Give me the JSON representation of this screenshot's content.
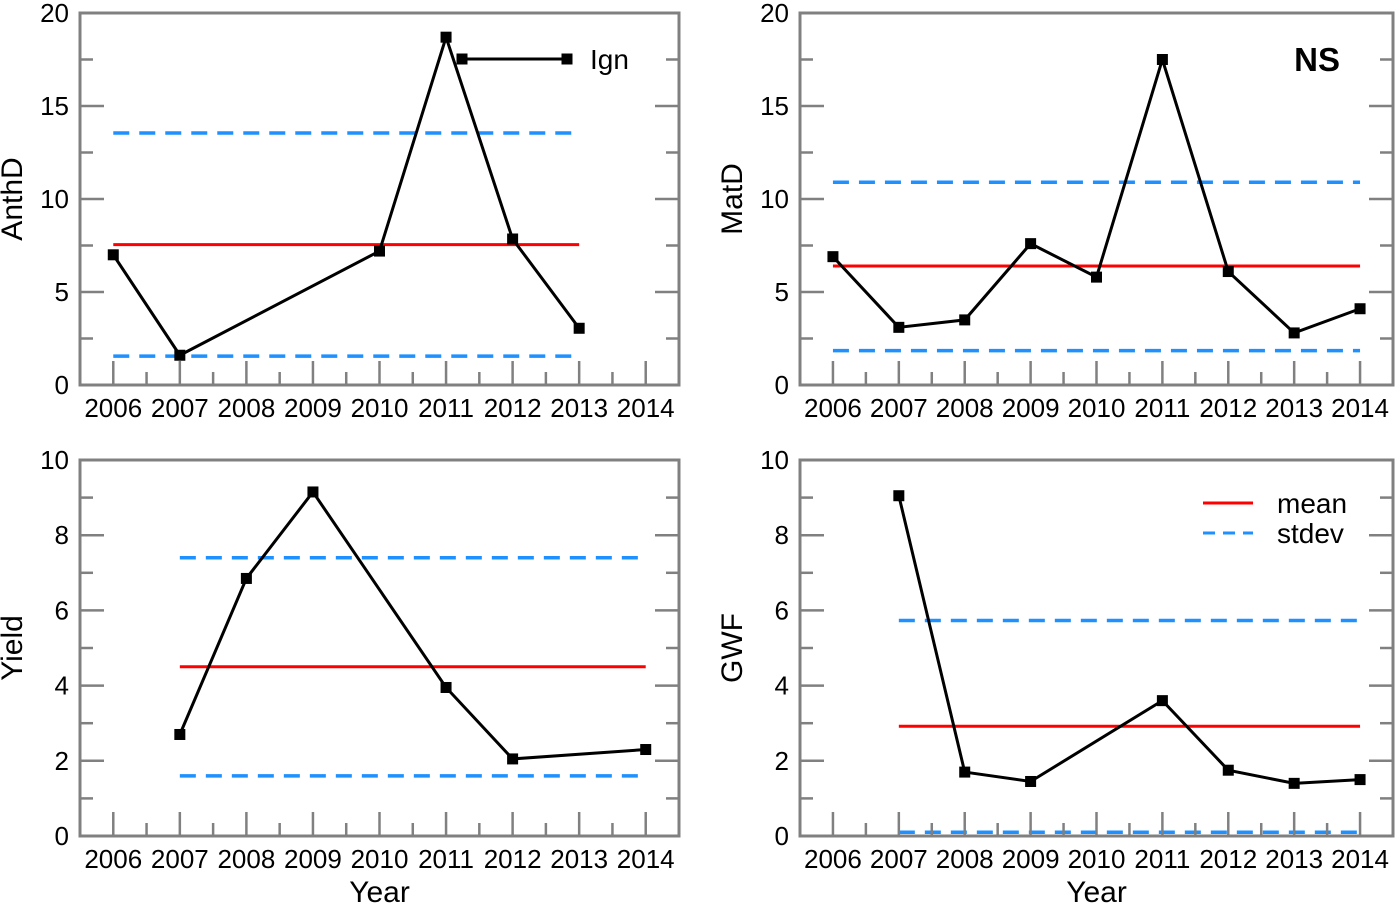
{
  "colors": {
    "background": "#ffffff",
    "series": "#000000",
    "mean": "#ff0000",
    "stdev": "#1e90ff",
    "frame": "#808080",
    "tick": "#808080",
    "text": "#000000",
    "annotation": "#878787"
  },
  "chart_data": [
    {
      "id": "anthd",
      "type": "line",
      "ylabel": "AnthD",
      "xlabel": "",
      "xlim": [
        2005.5,
        2014.5
      ],
      "ylim": [
        0,
        20
      ],
      "xticks": [
        2006,
        2007,
        2008,
        2009,
        2010,
        2011,
        2012,
        2013,
        2014
      ],
      "yticks": [
        0,
        5,
        10,
        15,
        20
      ],
      "yminor_step": 2.5,
      "grid": false,
      "series": [
        {
          "name": "Ign",
          "marker": "square",
          "x": [
            2006,
            2007,
            2010,
            2011,
            2012,
            2013
          ],
          "y": [
            7.0,
            1.6,
            7.2,
            18.7,
            7.85,
            3.05
          ]
        }
      ],
      "mean_line": {
        "value": 7.55,
        "label": "mean"
      },
      "stdev_band": {
        "low": 1.55,
        "high": 13.55,
        "label": "stdev"
      },
      "legend": {
        "show": true,
        "position": "top-right",
        "items": [
          {
            "label": "Ign",
            "sample": "series"
          }
        ]
      },
      "annotation": null
    },
    {
      "id": "matd",
      "type": "line",
      "ylabel": "MatD",
      "xlabel": "",
      "xlim": [
        2005.5,
        2014.5
      ],
      "ylim": [
        0,
        20
      ],
      "xticks": [
        2006,
        2007,
        2008,
        2009,
        2010,
        2011,
        2012,
        2013,
        2014
      ],
      "yticks": [
        0,
        5,
        10,
        15,
        20
      ],
      "yminor_step": 2.5,
      "grid": false,
      "series": [
        {
          "name": "Ign",
          "marker": "square",
          "x": [
            2006,
            2007,
            2008,
            2009,
            2010,
            2011,
            2012,
            2013,
            2014
          ],
          "y": [
            6.9,
            3.1,
            3.5,
            7.6,
            5.8,
            17.5,
            6.1,
            2.8,
            4.1
          ]
        }
      ],
      "mean_line": {
        "value": 6.4,
        "label": "mean"
      },
      "stdev_band": {
        "low": 1.85,
        "high": 10.9,
        "label": "stdev"
      },
      "legend": {
        "show": false,
        "items": []
      },
      "annotation": "NS"
    },
    {
      "id": "yield",
      "type": "line",
      "ylabel": "Yield",
      "xlabel": "Year",
      "xlim": [
        2005.5,
        2014.5
      ],
      "ylim": [
        0,
        10
      ],
      "xticks": [
        2006,
        2007,
        2008,
        2009,
        2010,
        2011,
        2012,
        2013,
        2014
      ],
      "yticks": [
        0,
        2,
        4,
        6,
        8,
        10
      ],
      "yminor_step": 1,
      "grid": false,
      "series": [
        {
          "name": "Ign",
          "marker": "square",
          "x": [
            2007,
            2008,
            2009,
            2011,
            2012,
            2014
          ],
          "y": [
            2.7,
            6.85,
            9.15,
            3.95,
            2.05,
            2.3
          ]
        }
      ],
      "mean_line": {
        "value": 4.5,
        "label": "mean"
      },
      "stdev_band": {
        "low": 1.6,
        "high": 7.4,
        "label": "stdev"
      },
      "legend": {
        "show": false,
        "items": []
      },
      "annotation": null
    },
    {
      "id": "gwf",
      "type": "line",
      "ylabel": "GWF",
      "xlabel": "Year",
      "xlim": [
        2005.5,
        2014.5
      ],
      "ylim": [
        0,
        10
      ],
      "xticks": [
        2006,
        2007,
        2008,
        2009,
        2010,
        2011,
        2012,
        2013,
        2014
      ],
      "yticks": [
        0,
        2,
        4,
        6,
        8,
        10
      ],
      "yminor_step": 1,
      "grid": false,
      "series": [
        {
          "name": "Ign",
          "marker": "square",
          "x": [
            2007,
            2008,
            2009,
            2011,
            2012,
            2013,
            2014
          ],
          "y": [
            9.05,
            1.7,
            1.45,
            3.6,
            1.75,
            1.4,
            1.5
          ]
        }
      ],
      "mean_line": {
        "value": 2.92,
        "label": "mean"
      },
      "stdev_band": {
        "low": 0.1,
        "high": 5.73,
        "label": "stdev"
      },
      "legend": {
        "show": true,
        "position": "top-right",
        "items": [
          {
            "label": "mean",
            "sample": "mean-line"
          },
          {
            "label": "stdev",
            "sample": "stdev-line"
          }
        ]
      },
      "annotation": null
    }
  ]
}
